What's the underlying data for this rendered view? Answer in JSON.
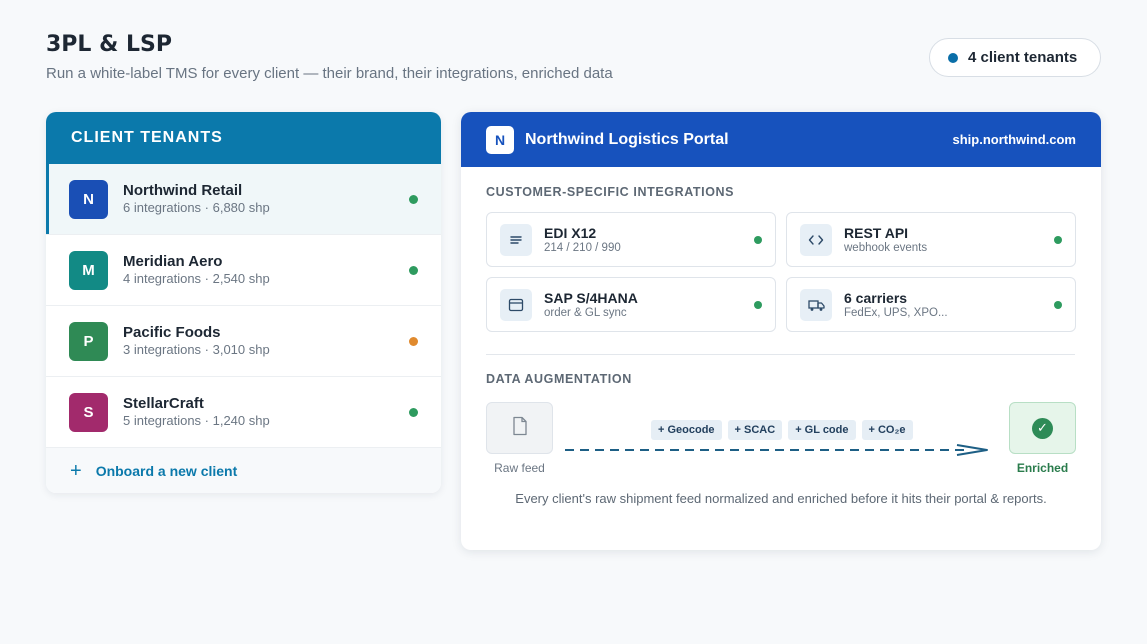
{
  "header": {
    "title": "3PL & LSP",
    "subtitle": "Run a white-label TMS for every client — their brand, their integrations, enriched data",
    "tenant_count_label": "4 client tenants"
  },
  "tenants": {
    "heading": "CLIENT TENANTS",
    "items": [
      {
        "initial": "N",
        "name": "Northwind Retail",
        "meta": "6 integrations · 6,880 shp",
        "color": "#1a4fb5",
        "status_color": "#2e9b5f"
      },
      {
        "initial": "M",
        "name": "Meridian Aero",
        "meta": "4 integrations · 2,540 shp",
        "color": "#128a85",
        "status_color": "#2e9b5f"
      },
      {
        "initial": "P",
        "name": "Pacific Foods",
        "meta": "3 integrations · 3,010 shp",
        "color": "#2f8a55",
        "status_color": "#e08a2e"
      },
      {
        "initial": "S",
        "name": "StellarCraft",
        "meta": "5 integrations · 1,240 shp",
        "color": "#a22a6c",
        "status_color": "#2e9b5f"
      }
    ],
    "onboard_label": "Onboard a new client"
  },
  "portal": {
    "logo_initial": "N",
    "title": "Northwind Logistics Portal",
    "domain": "ship.northwind.com",
    "integrations_heading": "CUSTOMER-SPECIFIC INTEGRATIONS",
    "integrations": [
      {
        "title": "EDI X12",
        "subtitle": "214 / 210 / 990",
        "icon": "document-lines-icon"
      },
      {
        "title": "REST API",
        "subtitle": "webhook events",
        "icon": "code-brackets-icon"
      },
      {
        "title": "SAP S/4HANA",
        "subtitle": "order & GL sync",
        "icon": "window-icon"
      },
      {
        "title": "6 carriers",
        "subtitle": "FedEx, UPS, XPO...",
        "icon": "truck-icon"
      }
    ],
    "augmentation_heading": "DATA AUGMENTATION",
    "raw_label": "Raw feed",
    "enriched_label": "Enriched",
    "chips": [
      "+ Geocode",
      "+ SCAC",
      "+ GL code",
      "+ CO₂e"
    ],
    "footer": "Every client's raw shipment feed normalized and enriched before it hits their portal & reports.",
    "accent": "#1752bd",
    "status_ok": "#2e9b5f"
  }
}
